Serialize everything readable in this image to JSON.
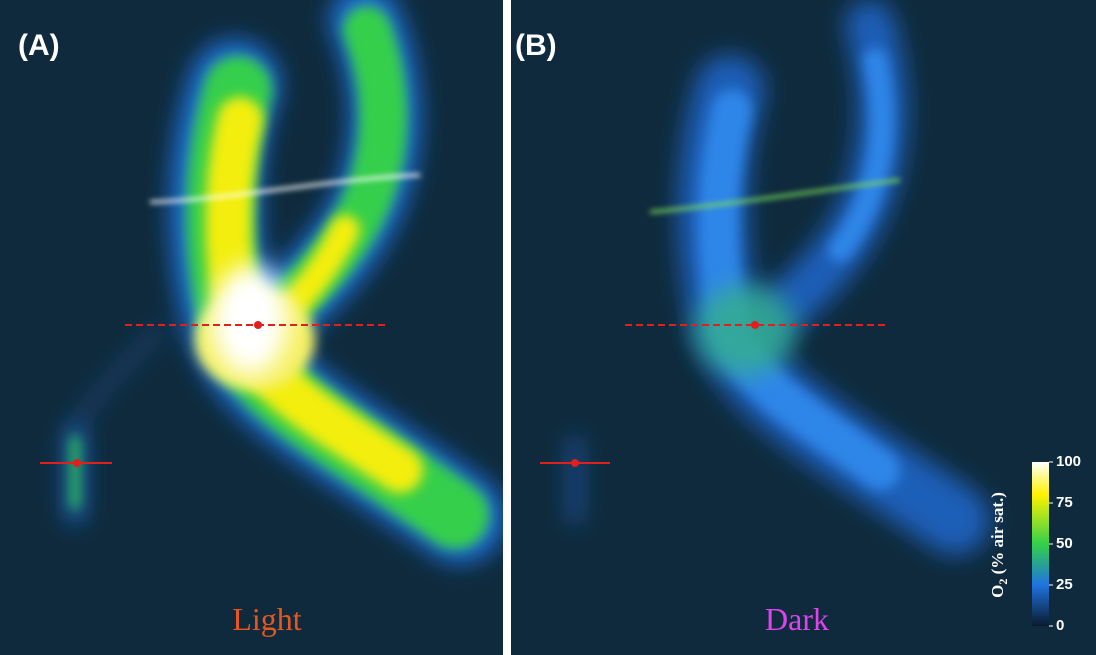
{
  "panels": [
    {
      "tag": "(A)",
      "condition": "Light"
    },
    {
      "tag": "(B)",
      "condition": "Dark"
    }
  ],
  "colorbar": {
    "label_main": "O",
    "label_sub": "2",
    "label_rest": " (% air sat.)",
    "lim": [
      0,
      100
    ],
    "ticks": [
      0,
      25,
      50,
      75,
      100
    ]
  }
}
